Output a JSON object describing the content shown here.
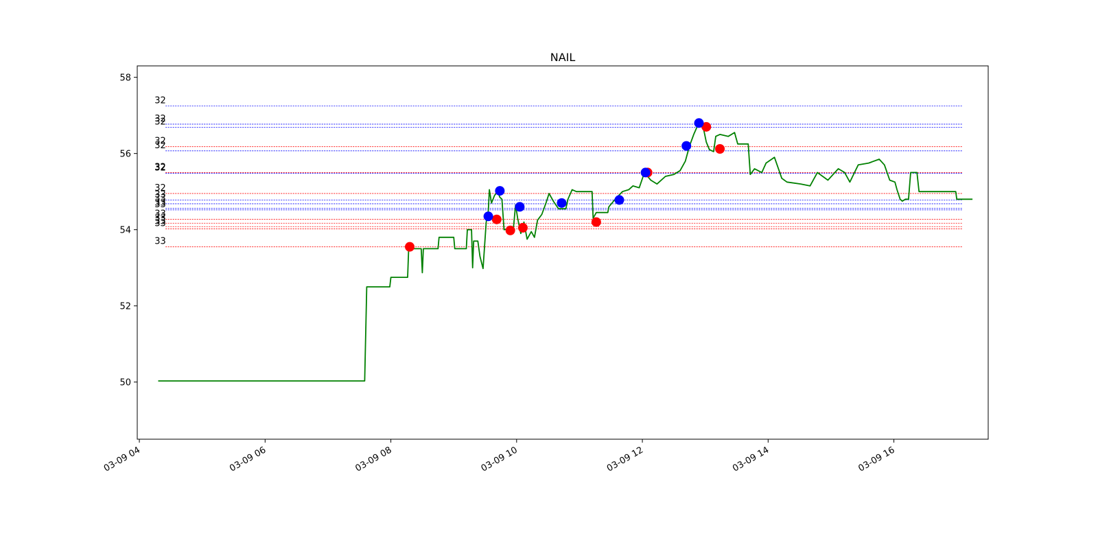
{
  "chart_data": {
    "type": "line",
    "title": "NAIL",
    "xlabel": "",
    "ylabel": "",
    "xlim": [
      "03-09 03:58",
      "03-09 17:30"
    ],
    "ylim": [
      48.5,
      58.3
    ],
    "grid": false,
    "x_ticks": [
      "03-09 04",
      "03-09 06",
      "03-09 08",
      "03-09 10",
      "03-09 12",
      "03-09 14",
      "03-09 16"
    ],
    "y_ticks": [
      "50",
      "52",
      "54",
      "56",
      "58"
    ],
    "colors": {
      "line": "#008000",
      "buy": "#ff0000",
      "sell": "#0000ff"
    },
    "series": [
      {
        "color": "#008000",
        "points": [
          [
            "03-09 04:18",
            50.03
          ],
          [
            "03-09 07:35",
            50.03
          ],
          [
            "03-09 07:37",
            52.5
          ],
          [
            "03-09 07:59",
            52.5
          ],
          [
            "03-09 08:00",
            52.75
          ],
          [
            "03-09 08:16",
            52.75
          ],
          [
            "03-09 08:17",
            53.5
          ],
          [
            "03-09 08:29",
            53.5
          ],
          [
            "03-09 08:30",
            52.87
          ],
          [
            "03-09 08:31",
            53.5
          ],
          [
            "03-09 08:45",
            53.5
          ],
          [
            "03-09 08:46",
            53.8
          ],
          [
            "03-09 09:00",
            53.8
          ],
          [
            "03-09 09:01",
            53.5
          ],
          [
            "03-09 09:12",
            53.5
          ],
          [
            "03-09 09:13",
            54.0
          ],
          [
            "03-09 09:17",
            54.0
          ],
          [
            "03-09 09:18",
            53.0
          ],
          [
            "03-09 09:19",
            53.7
          ],
          [
            "03-09 09:23",
            53.7
          ],
          [
            "03-09 09:25",
            53.3
          ],
          [
            "03-09 09:28",
            52.98
          ],
          [
            "03-09 09:31",
            54.2
          ],
          [
            "03-09 09:33",
            54.5
          ],
          [
            "03-09 09:34",
            55.05
          ],
          [
            "03-09 09:36",
            54.7
          ],
          [
            "03-09 09:39",
            54.9
          ],
          [
            "03-09 09:42",
            55.0
          ],
          [
            "03-09 09:44",
            54.85
          ],
          [
            "03-09 09:46",
            54.8
          ],
          [
            "03-09 09:48",
            54.0
          ],
          [
            "03-09 09:57",
            54.05
          ],
          [
            "03-09 09:59",
            54.65
          ],
          [
            "03-09 10:01",
            54.3
          ],
          [
            "03-09 10:04",
            53.9
          ],
          [
            "03-09 10:07",
            54.2
          ],
          [
            "03-09 10:10",
            53.75
          ],
          [
            "03-09 10:14",
            53.95
          ],
          [
            "03-09 10:17",
            53.8
          ],
          [
            "03-09 10:20",
            54.25
          ],
          [
            "03-09 10:24",
            54.4
          ],
          [
            "03-09 10:28",
            54.7
          ],
          [
            "03-09 10:31",
            54.95
          ],
          [
            "03-09 10:35",
            54.75
          ],
          [
            "03-09 10:40",
            54.55
          ],
          [
            "03-09 10:47",
            54.55
          ],
          [
            "03-09 10:49",
            54.8
          ],
          [
            "03-09 10:53",
            55.05
          ],
          [
            "03-09 10:57",
            55.0
          ],
          [
            "03-09 11:12",
            55.0
          ],
          [
            "03-09 11:13",
            54.3
          ],
          [
            "03-09 11:16",
            54.45
          ],
          [
            "03-09 11:27",
            54.45
          ],
          [
            "03-09 11:28",
            54.6
          ],
          [
            "03-09 11:34",
            54.8
          ],
          [
            "03-09 11:41",
            55.0
          ],
          [
            "03-09 11:47",
            55.05
          ],
          [
            "03-09 11:51",
            55.15
          ],
          [
            "03-09 11:57",
            55.1
          ],
          [
            "03-09 12:02",
            55.5
          ],
          [
            "03-09 12:08",
            55.3
          ],
          [
            "03-09 12:14",
            55.2
          ],
          [
            "03-09 12:22",
            55.4
          ],
          [
            "03-09 12:30",
            55.45
          ],
          [
            "03-09 12:36",
            55.55
          ],
          [
            "03-09 12:41",
            55.8
          ],
          [
            "03-09 12:45",
            56.2
          ],
          [
            "03-09 12:49",
            56.5
          ],
          [
            "03-09 12:53",
            56.75
          ],
          [
            "03-09 12:58",
            56.7
          ],
          [
            "03-09 13:01",
            56.3
          ],
          [
            "03-09 13:04",
            56.1
          ],
          [
            "03-09 13:08",
            56.05
          ],
          [
            "03-09 13:10",
            56.45
          ],
          [
            "03-09 13:14",
            56.5
          ],
          [
            "03-09 13:22",
            56.45
          ],
          [
            "03-09 13:28",
            56.55
          ],
          [
            "03-09 13:31",
            56.25
          ],
          [
            "03-09 13:41",
            56.25
          ],
          [
            "03-09 13:43",
            55.45
          ],
          [
            "03-09 13:47",
            55.6
          ],
          [
            "03-09 13:54",
            55.5
          ],
          [
            "03-09 13:58",
            55.75
          ],
          [
            "03-09 14:06",
            55.9
          ],
          [
            "03-09 14:13",
            55.35
          ],
          [
            "03-09 14:18",
            55.25
          ],
          [
            "03-09 14:31",
            55.2
          ],
          [
            "03-09 14:40",
            55.15
          ],
          [
            "03-09 14:47",
            55.5
          ],
          [
            "03-09 14:57",
            55.3
          ],
          [
            "03-09 15:07",
            55.6
          ],
          [
            "03-09 15:13",
            55.5
          ],
          [
            "03-09 15:18",
            55.25
          ],
          [
            "03-09 15:26",
            55.7
          ],
          [
            "03-09 15:36",
            55.75
          ],
          [
            "03-09 15:46",
            55.85
          ],
          [
            "03-09 15:51",
            55.7
          ],
          [
            "03-09 15:56",
            55.3
          ],
          [
            "03-09 16:01",
            55.25
          ],
          [
            "03-09 16:03",
            55.05
          ],
          [
            "03-09 16:06",
            54.8
          ],
          [
            "03-09 16:08",
            54.75
          ],
          [
            "03-09 16:11",
            54.8
          ],
          [
            "03-09 16:14",
            54.8
          ],
          [
            "03-09 16:16",
            55.5
          ],
          [
            "03-09 16:22",
            55.5
          ],
          [
            "03-09 16:24",
            55.0
          ],
          [
            "03-09 16:59",
            55.0
          ],
          [
            "03-09 17:00",
            54.8
          ],
          [
            "03-09 17:15",
            54.8
          ]
        ]
      }
    ],
    "buy_points": [
      [
        "03-09 08:18",
        53.55
      ],
      [
        "03-09 09:41",
        54.27
      ],
      [
        "03-09 09:54",
        53.98
      ],
      [
        "03-09 10:06",
        54.05
      ],
      [
        "03-09 11:16",
        54.2
      ],
      [
        "03-09 12:05",
        55.5
      ],
      [
        "03-09 13:01",
        56.7
      ],
      [
        "03-09 13:14",
        56.12
      ]
    ],
    "sell_points": [
      [
        "03-09 09:33",
        54.35
      ],
      [
        "03-09 09:44",
        55.02
      ],
      [
        "03-09 10:03",
        54.6
      ],
      [
        "03-09 10:43",
        54.7
      ],
      [
        "03-09 11:38",
        54.78
      ],
      [
        "03-09 12:03",
        55.5
      ],
      [
        "03-09 12:42",
        56.2
      ],
      [
        "03-09 12:54",
        56.8
      ]
    ],
    "levels": [
      {
        "value": 57.25,
        "label": "32",
        "color": "#0000ff"
      },
      {
        "value": 56.77,
        "label": "32",
        "color": "#0000ff"
      },
      {
        "value": 56.69,
        "label": "32",
        "color": "#0000ff"
      },
      {
        "value": 56.18,
        "label": "32",
        "color": "#ff0000"
      },
      {
        "value": 56.07,
        "label": "32",
        "color": "#0000ff"
      },
      {
        "value": 55.5,
        "label": "32",
        "color": "#ff0000"
      },
      {
        "value": 55.48,
        "label": "32",
        "color": "#0000ff"
      },
      {
        "value": 54.95,
        "label": "32",
        "color": "#ff0000"
      },
      {
        "value": 54.78,
        "label": "33",
        "color": "#0000ff"
      },
      {
        "value": 54.68,
        "label": "33",
        "color": "#0000ff"
      },
      {
        "value": 54.56,
        "label": "33",
        "color": "#0000ff"
      },
      {
        "value": 54.52,
        "label": "33",
        "color": "#0000ff"
      },
      {
        "value": 54.27,
        "label": "33",
        "color": "#ff0000"
      },
      {
        "value": 54.17,
        "label": "33",
        "color": "#ff0000"
      },
      {
        "value": 54.08,
        "label": "33",
        "color": "#ff0000"
      },
      {
        "value": 54.02,
        "label": "33",
        "color": "#ff0000"
      },
      {
        "value": 53.55,
        "label": "33",
        "color": "#ff0000"
      }
    ]
  }
}
